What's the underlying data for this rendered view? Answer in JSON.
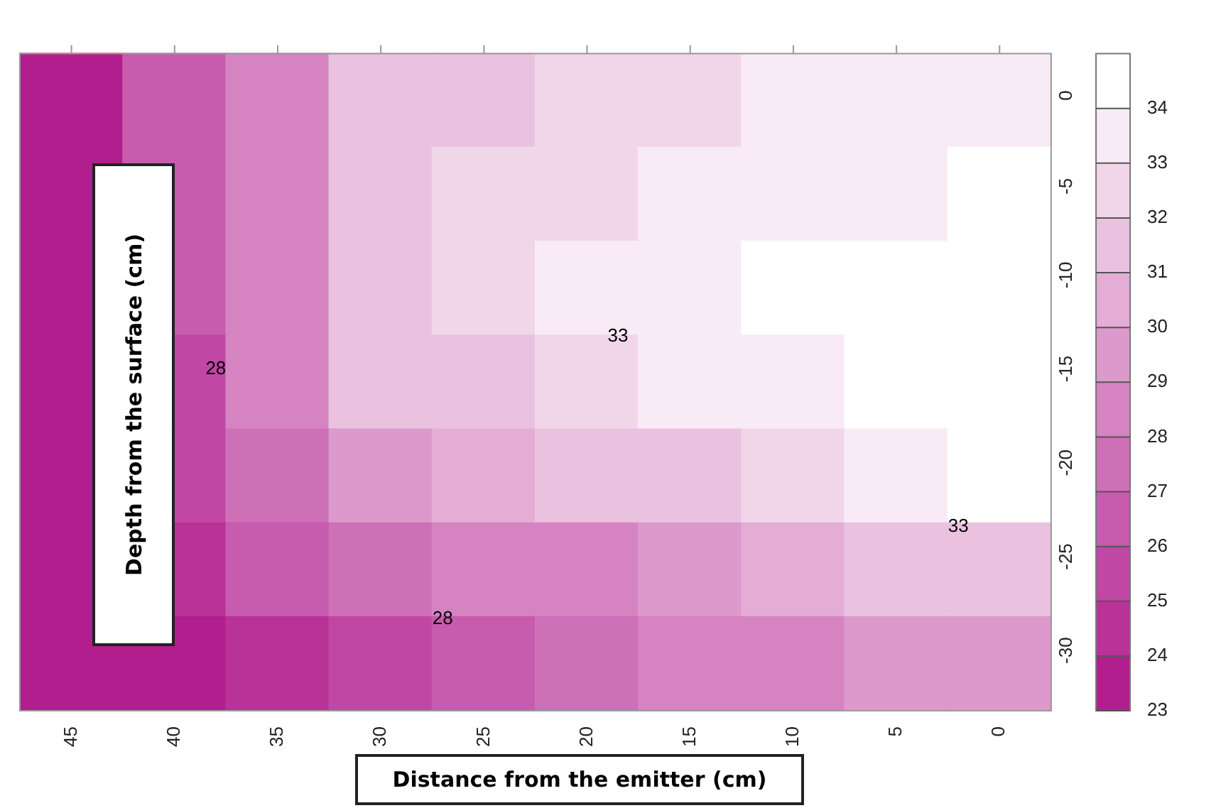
{
  "chart_data": {
    "type": "heatmap",
    "xlabel": "Distance from the emitter (cm)",
    "ylabel": "Depth from the surface (cm)",
    "categories": [
      "45",
      "40",
      "35",
      "30",
      "25",
      "20",
      "15",
      "10",
      "5",
      "0"
    ],
    "y_categories": [
      "0",
      "-5",
      "-10",
      "-15",
      "-20",
      "-25",
      "-30"
    ],
    "cells": [
      [
        23.5,
        26.0,
        28.8,
        31.0,
        31.9,
        32.4,
        32.6,
        33.0,
        33.5,
        33.8
      ],
      [
        23.4,
        26.0,
        28.8,
        31.0,
        32.1,
        32.8,
        33.3,
        33.6,
        33.9,
        34.0
      ],
      [
        23.6,
        26.0,
        28.8,
        31.3,
        32.3,
        33.1,
        33.5,
        34.0,
        34.5,
        34.7
      ],
      [
        23.6,
        25.8,
        28.5,
        31.1,
        31.9,
        32.6,
        33.3,
        33.6,
        34.1,
        34.6
      ],
      [
        23.8,
        25.3,
        27.5,
        29.5,
        30.3,
        31.1,
        31.8,
        32.4,
        33.3,
        34.1
      ],
      [
        23.3,
        24.5,
        26.0,
        27.3,
        28.0,
        28.8,
        29.5,
        30.3,
        31.0,
        31.6
      ],
      [
        23.1,
        23.8,
        24.8,
        25.8,
        26.5,
        27.3,
        28.0,
        28.8,
        29.3,
        29.6
      ]
    ],
    "clim": [
      23,
      35
    ],
    "cticks": [
      23,
      24,
      25,
      26,
      27,
      28,
      29,
      30,
      31,
      32,
      33,
      34
    ],
    "annotations": [
      "28",
      "28",
      "33",
      "33"
    ]
  }
}
